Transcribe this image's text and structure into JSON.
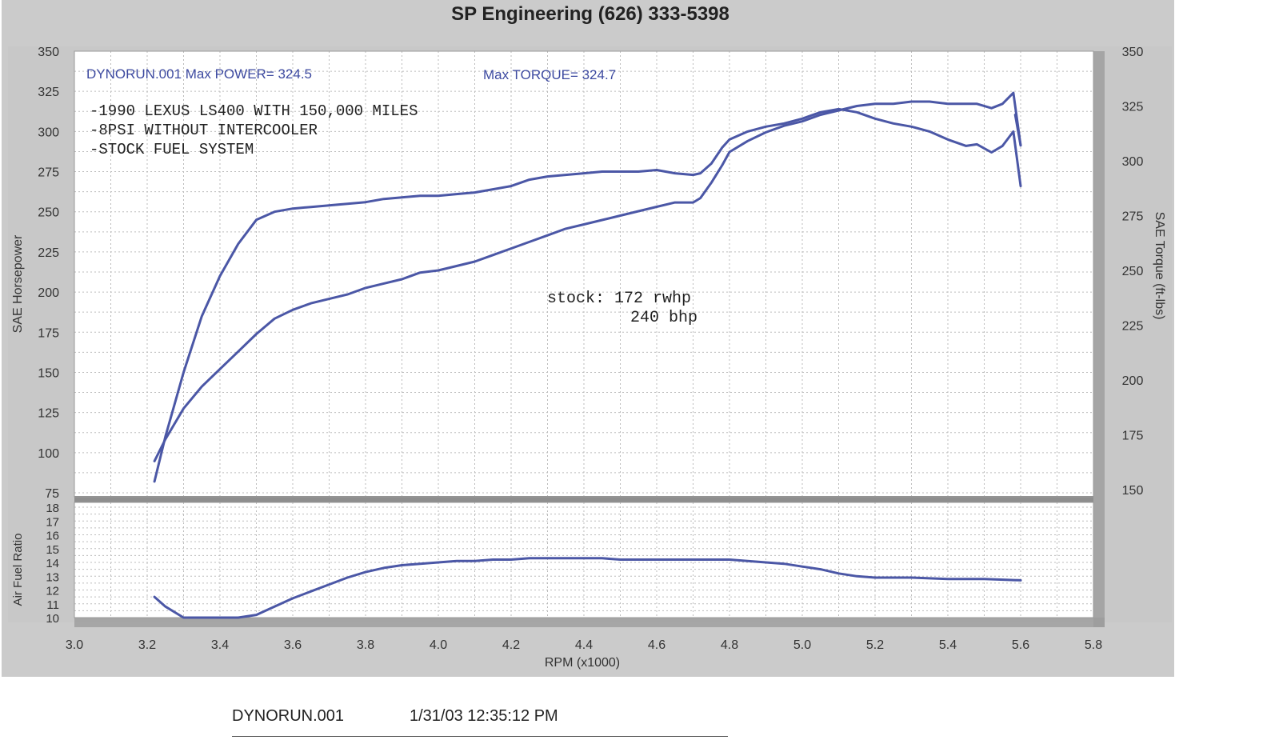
{
  "header": {
    "title": "SP Engineering (626) 333-5398"
  },
  "legend": {
    "run_power": "DYNORUN.001  Max POWER= 324.5",
    "torque": "Max TORQUE= 324.7"
  },
  "notes": [
    "-1990 LEXUS LS400 WITH 150,000 MILES",
    "-8PSI WITHOUT INTERCOOLER",
    "-STOCK FUEL SYSTEM"
  ],
  "stock_note": {
    "line1": "stock: 172 rwhp",
    "line2": "240 bhp"
  },
  "footer": {
    "run": "DYNORUN.001",
    "datetime": "1/31/03 12:35:12 PM"
  },
  "colors": {
    "curve": "#4b57a6",
    "frame": "#c8c8c8",
    "plot_bg": "#ffffff",
    "grid": "#bdbdbd"
  },
  "chart_data": [
    {
      "type": "line",
      "title": "SP Engineering (626) 333-5398",
      "xlabel": "RPM (x1000)",
      "ylabel": "SAE Horsepower",
      "y2label": "SAE Torque (ft-lbs)",
      "xlim": [
        3.0,
        5.8
      ],
      "ylim": [
        75,
        350
      ],
      "y2lim": [
        150,
        350
      ],
      "x_ticks": [
        "3.0",
        "3.2",
        "3.4",
        "3.6",
        "3.8",
        "4.0",
        "4.2",
        "4.4",
        "4.6",
        "4.8",
        "5.0",
        "5.2",
        "5.4",
        "5.6",
        "5.8"
      ],
      "y_ticks": [
        "75",
        "100",
        "125",
        "150",
        "175",
        "200",
        "225",
        "250",
        "275",
        "300",
        "325",
        "350"
      ],
      "y2_ticks": [
        "150",
        "175",
        "200",
        "225",
        "250",
        "275",
        "300",
        "325",
        "350"
      ],
      "grid": true,
      "series": [
        {
          "axis": "left",
          "x": [
            3.22,
            3.25,
            3.3,
            3.35,
            3.4,
            3.45,
            3.5,
            3.55,
            3.6,
            3.65,
            3.7,
            3.75,
            3.8,
            3.85,
            3.9,
            3.95,
            4.0,
            4.05,
            4.1,
            4.15,
            4.2,
            4.25,
            4.3,
            4.35,
            4.4,
            4.45,
            4.5,
            4.55,
            4.6,
            4.65,
            4.7,
            4.72,
            4.75,
            4.78,
            4.8,
            4.85,
            4.9,
            4.95,
            5.0,
            5.05,
            5.1,
            5.15,
            5.2,
            5.25,
            5.3,
            5.35,
            5.4,
            5.45,
            5.48,
            5.52,
            5.55,
            5.58,
            5.6
          ],
          "y": [
            82,
            110,
            150,
            185,
            210,
            230,
            245,
            250,
            252,
            253,
            254,
            255,
            256,
            258,
            259,
            260,
            260,
            261,
            262,
            264,
            266,
            270,
            272,
            273,
            274,
            275,
            275,
            275,
            276,
            274,
            273,
            274,
            280,
            290,
            295,
            300,
            303,
            305,
            308,
            312,
            314,
            312,
            308,
            305,
            303,
            300,
            295,
            291,
            292,
            287,
            291,
            300,
            266
          ]
        },
        {
          "axis": "right",
          "x": [
            3.22,
            3.25,
            3.3,
            3.35,
            3.4,
            3.45,
            3.5,
            3.55,
            3.6,
            3.65,
            3.7,
            3.75,
            3.8,
            3.85,
            3.9,
            3.95,
            4.0,
            4.05,
            4.1,
            4.15,
            4.2,
            4.25,
            4.3,
            4.35,
            4.4,
            4.45,
            4.5,
            4.55,
            4.6,
            4.65,
            4.7,
            4.72,
            4.75,
            4.78,
            4.8,
            4.85,
            4.9,
            4.95,
            5.0,
            5.05,
            5.1,
            5.15,
            5.2,
            5.25,
            5.3,
            5.35,
            5.4,
            5.45,
            5.48,
            5.52,
            5.55,
            5.58,
            5.6
          ],
          "y": [
            163,
            173,
            187,
            197,
            205,
            213,
            221,
            228,
            232,
            235,
            237,
            239,
            242,
            244,
            246,
            249,
            250,
            252,
            254,
            257,
            260,
            263,
            266,
            269,
            271,
            273,
            275,
            277,
            279,
            281,
            281,
            283,
            290,
            298,
            304,
            309,
            313,
            316,
            318,
            321,
            323,
            325,
            326,
            326,
            327,
            327,
            326,
            326,
            326,
            324,
            326,
            331,
            307
          ]
        },
        {
          "axis": "right-tip",
          "x": [
            5.585,
            5.6
          ],
          "y": [
            321,
            307
          ]
        }
      ]
    },
    {
      "type": "line",
      "xlabel": "RPM (x1000)",
      "ylabel": "Air Fuel Ratio",
      "xlim": [
        3.0,
        5.8
      ],
      "ylim": [
        10,
        18
      ],
      "y_ticks": [
        "10",
        "11",
        "12",
        "13",
        "14",
        "15",
        "16",
        "17",
        "18"
      ],
      "grid": true,
      "series": [
        {
          "x": [
            3.22,
            3.25,
            3.3,
            3.35,
            3.4,
            3.45,
            3.5,
            3.55,
            3.6,
            3.65,
            3.7,
            3.75,
            3.8,
            3.85,
            3.9,
            3.95,
            4.0,
            4.05,
            4.1,
            4.15,
            4.2,
            4.25,
            4.3,
            4.35,
            4.4,
            4.45,
            4.5,
            4.55,
            4.6,
            4.65,
            4.7,
            4.75,
            4.8,
            4.85,
            4.9,
            4.95,
            5.0,
            5.05,
            5.1,
            5.15,
            5.2,
            5.3,
            5.4,
            5.5,
            5.6
          ],
          "y": [
            11.5,
            10.8,
            10.0,
            10.0,
            10.0,
            10.0,
            10.2,
            10.8,
            11.4,
            11.9,
            12.4,
            12.9,
            13.3,
            13.6,
            13.8,
            13.9,
            14.0,
            14.1,
            14.1,
            14.2,
            14.2,
            14.3,
            14.3,
            14.3,
            14.3,
            14.3,
            14.2,
            14.2,
            14.2,
            14.2,
            14.2,
            14.2,
            14.2,
            14.1,
            14.0,
            13.9,
            13.7,
            13.5,
            13.2,
            13.0,
            12.9,
            12.9,
            12.8,
            12.8,
            12.7
          ]
        }
      ]
    }
  ]
}
